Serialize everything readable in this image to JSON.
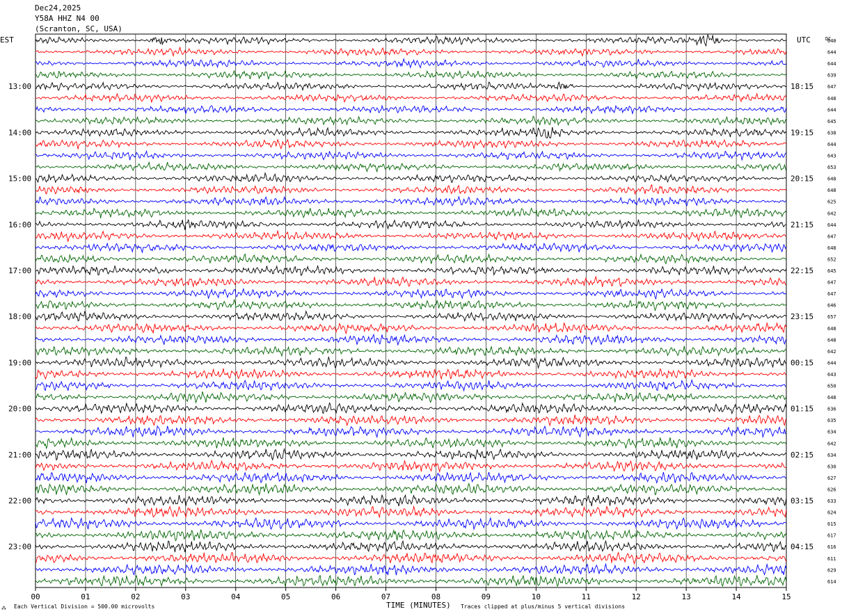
{
  "header": {
    "date": "Dec24,2025",
    "station": "Y58A HHZ N4 00",
    "location": "(Scranton, SC, USA)"
  },
  "left_axis_title": "EST",
  "right_axis_title": "UTC",
  "dc_label": "DC",
  "footer": {
    "scale_note": "Each Vertical Division =  500.00 microvolts",
    "xlabel": "TIME (MINUTES)",
    "clip_note": "Traces clipped at plus/minus 5 vertical divisions"
  },
  "colors": {
    "trace_cycle": [
      "#000000",
      "#ff0000",
      "#0000ff",
      "#006400"
    ],
    "grid": "#000000"
  },
  "chart_data": {
    "type": "line",
    "title": "",
    "xlabel": "TIME (MINUTES)",
    "ylabel": "",
    "xlim": [
      0,
      15
    ],
    "x_ticks": [
      "00",
      "01",
      "02",
      "03",
      "04",
      "05",
      "06",
      "07",
      "08",
      "09",
      "10",
      "11",
      "12",
      "13",
      "14",
      "15"
    ],
    "rows_per_hour": 4,
    "row_count": 48,
    "est_hour_labels": [
      "13:00",
      "14:00",
      "15:00",
      "16:00",
      "17:00",
      "18:00",
      "19:00",
      "20:00",
      "21:00",
      "22:00",
      "23:00"
    ],
    "utc_hour_labels": [
      "18:15",
      "19:15",
      "20:15",
      "21:15",
      "22:15",
      "23:15",
      "00:15",
      "01:15",
      "02:15",
      "03:15",
      "04:15"
    ],
    "dc_offsets": [
      640,
      644,
      644,
      639,
      647,
      648,
      644,
      645,
      638,
      644,
      643,
      653,
      648,
      648,
      625,
      642,
      644,
      647,
      648,
      652,
      645,
      647,
      647,
      646,
      657,
      648,
      648,
      642,
      644,
      643,
      650,
      648,
      636,
      635,
      634,
      642,
      634,
      630,
      627,
      626,
      633,
      624,
      615,
      617,
      616,
      611,
      629,
      614
    ],
    "events": [
      {
        "row": 0,
        "minute": 13.4,
        "amp": 1.3
      },
      {
        "row": 0,
        "minute": 2.5,
        "amp": 0.9
      },
      {
        "row": 8,
        "minute": 10.2,
        "amp": 1.6
      },
      {
        "row": 4,
        "minute": 10.5,
        "amp": 0.7
      },
      {
        "row": 16,
        "minute": 3.0,
        "amp": 0.8
      },
      {
        "row": 20,
        "minute": 2.5,
        "amp": 0.6
      }
    ]
  }
}
